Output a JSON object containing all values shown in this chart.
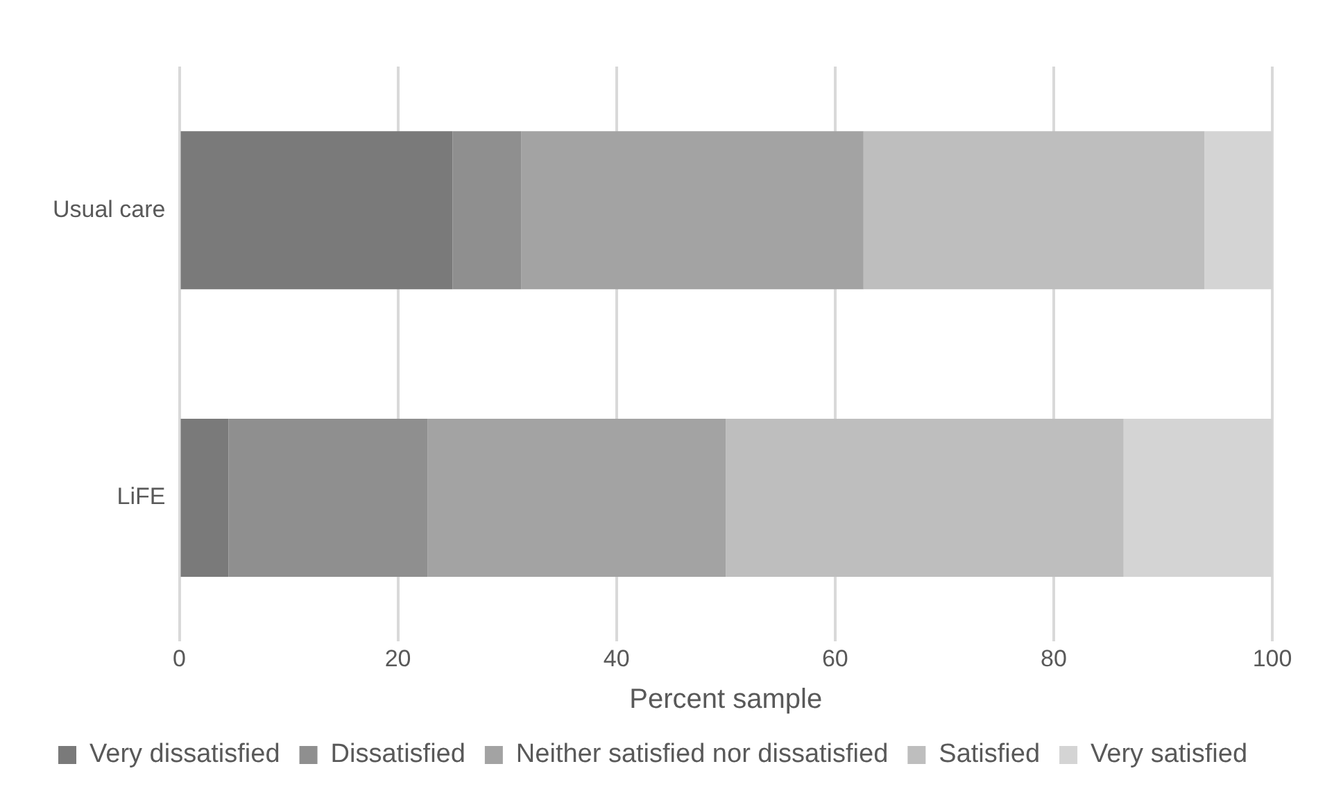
{
  "chart_data": {
    "type": "bar",
    "orientation": "horizontal",
    "stacked": true,
    "categories": [
      "Usual care",
      "LiFE"
    ],
    "series": [
      {
        "name": "Very dissatisfied",
        "color": "#7a7a7a",
        "values": [
          25,
          4.5
        ]
      },
      {
        "name": "Dissatisfied",
        "color": "#8f8f8f",
        "values": [
          6.3,
          18.2
        ]
      },
      {
        "name": "Neither satisfied nor dissatisfied",
        "color": "#a3a3a3",
        "values": [
          31.3,
          27.3
        ]
      },
      {
        "name": "Satisfied",
        "color": "#bebebe",
        "values": [
          31.2,
          36.4
        ]
      },
      {
        "name": "Very satisfied",
        "color": "#d4d4d4",
        "values": [
          6.2,
          13.6
        ]
      }
    ],
    "xlim": [
      0,
      100
    ],
    "xticks": [
      0,
      20,
      40,
      60,
      80,
      100
    ],
    "xlabel": "Percent sample",
    "grid": "x",
    "legend": "bottom"
  }
}
